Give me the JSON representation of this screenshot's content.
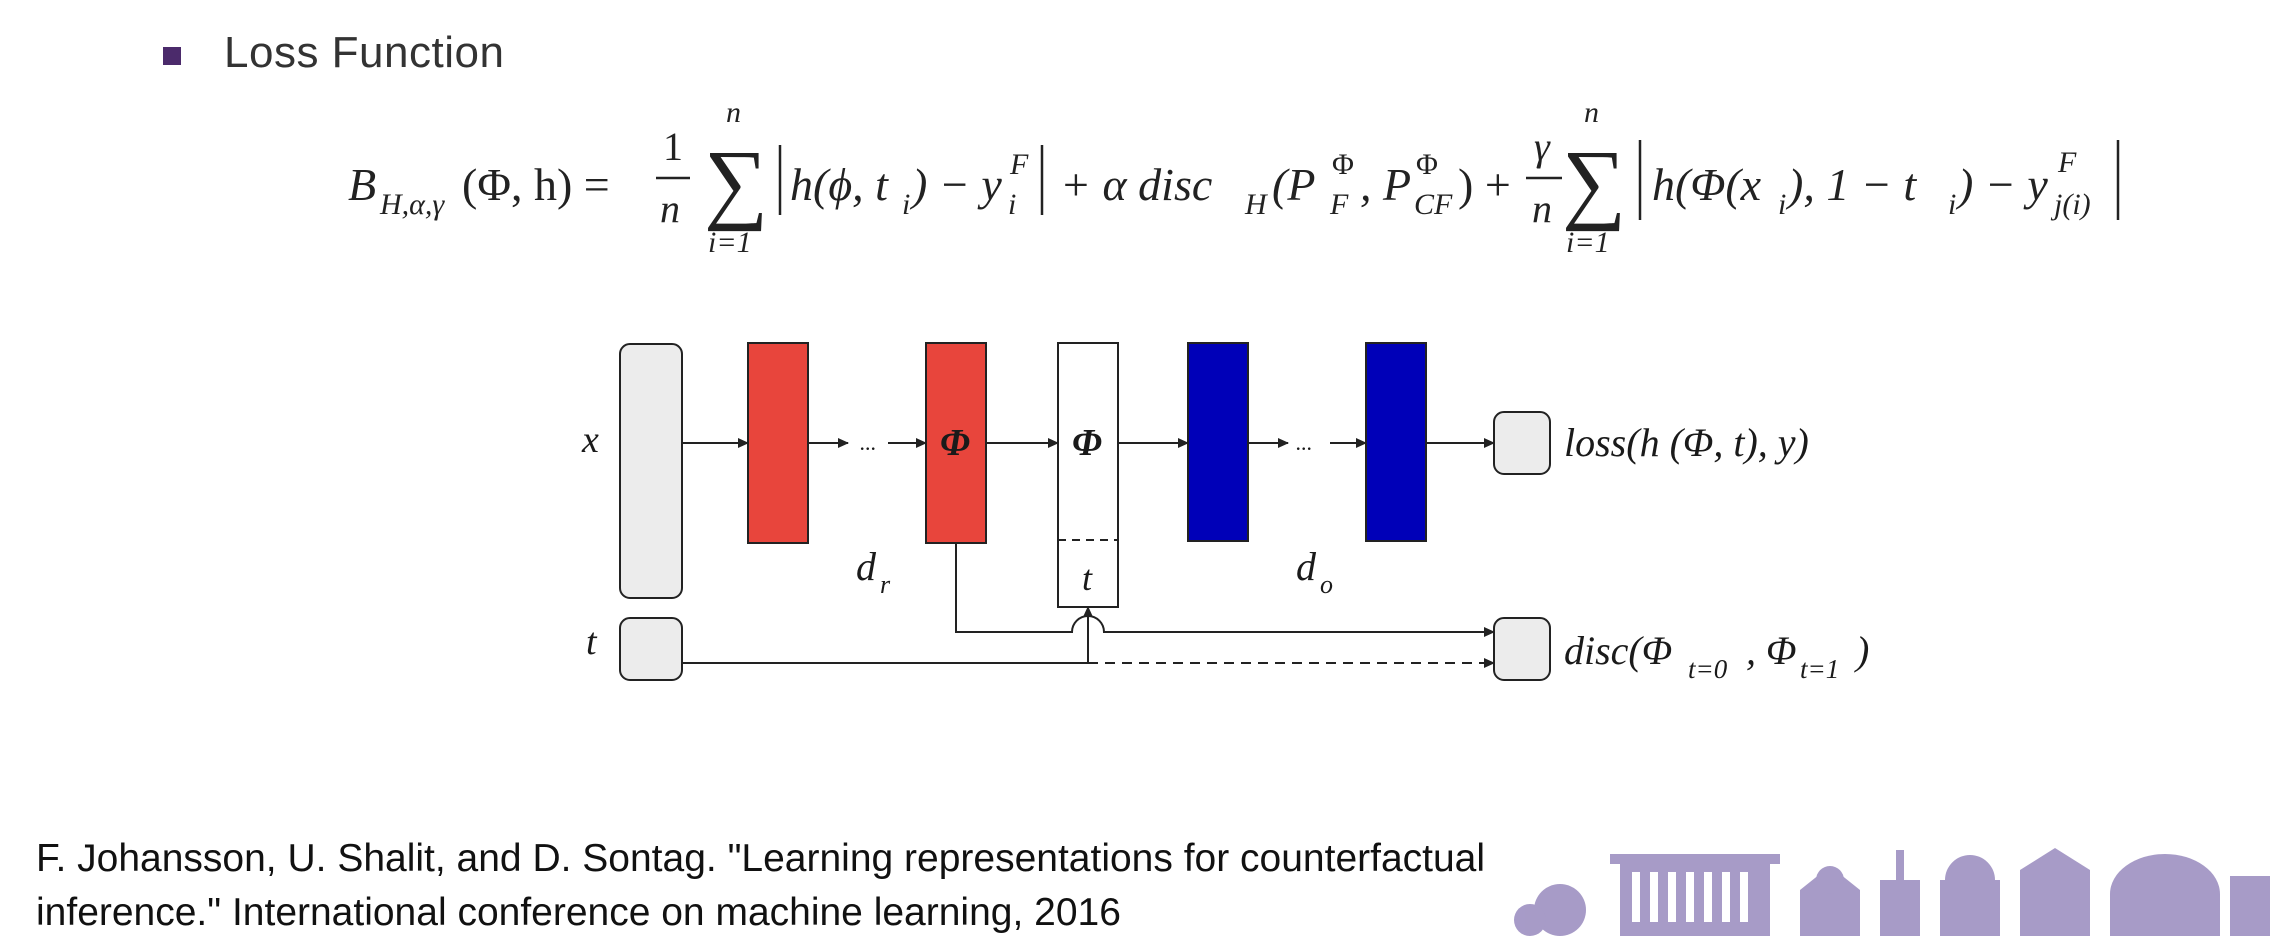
{
  "slide": {
    "bullet": "Loss Function",
    "citation_line1": "F. Johansson, U. Shalit, and D. Sontag. \"Learning representations for counterfactual",
    "citation_line2": "inference.\" International conference on machine learning, 2016"
  },
  "equation": {
    "lhs": "B",
    "lhs_sub": "H,α,γ",
    "lhs_args": "(Φ, h) =",
    "frac1_num": "1",
    "frac1_den": "n",
    "sum_top": "n",
    "sum_bottom": "i=1",
    "term1": "h(ϕ, t",
    "term1_sub": "i",
    "term1_mid": ") − y",
    "term1_sup": "F",
    "term1_sub2": "i",
    "plus1": "+ α disc",
    "disc_sub": "H",
    "disc_open": "(P",
    "p1_sup": "Φ",
    "p1_sub": "F",
    "comma": ", P",
    "p2_sup": "Φ",
    "p2_sub": "CF",
    "disc_close": ") +",
    "frac2_num": "γ",
    "frac2_den": "n",
    "sum2_top": "n",
    "sum2_bottom": "i=1",
    "term3": "h(Φ(x",
    "term3_sub": "i",
    "term3_mid": "), 1 − t",
    "term3_sub2": "i",
    "term3_end": ") − y",
    "term3_sup": "F",
    "term3_sub3": "j(i)"
  },
  "diagram": {
    "input_x": "x",
    "input_t": "t",
    "ellipsis": "...",
    "phi": "Φ",
    "t_box": "t",
    "d_r": "d",
    "d_r_sub": "r",
    "d_o": "d",
    "d_o_sub": "o",
    "loss_label": "loss(h (Φ, t), y)",
    "disc_label": "disc(Φ",
    "disc_sub0": "t=0",
    "disc_mid": ", Φ",
    "disc_sub1": "t=1",
    "disc_end": ")",
    "colors": {
      "representation": "#e8453c",
      "outcome": "#0000b8",
      "neutral_box": "#ececec"
    }
  }
}
